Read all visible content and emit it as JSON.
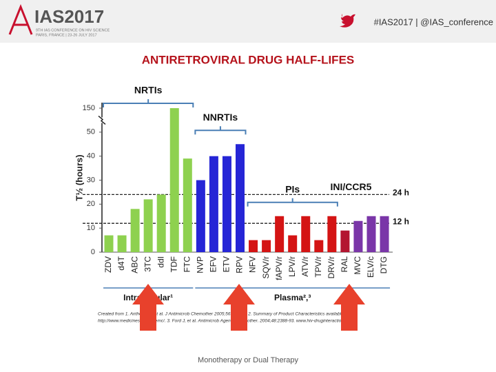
{
  "header": {
    "logo": "IAS2017",
    "logo_sub": "9TH IAS CONFERENCE ON HIV SCIENCE",
    "logo_place": "PARIS, FRANCE | 23-26 JULY 2017",
    "hashtag": "#IAS2017 | @IAS_conference"
  },
  "caption": "Monotherapy or Dual Therapy",
  "chart_data": {
    "type": "bar",
    "title": "ANTIRETROVIRAL DRUG HALF-LIFES",
    "y_label": "T½ (hours)",
    "categories": [
      "ZDV",
      "d4T",
      "ABC",
      "3TC",
      "ddI",
      "TDF",
      "FTC",
      "NVP",
      "EFV",
      "ETV",
      "RPV",
      "NFV",
      "SQV/r",
      "fAPV/r",
      "LPV/r",
      "ATV/r",
      "TPV/r",
      "DRV/r",
      "RAL",
      "MVC",
      "ELV/c",
      "DTG"
    ],
    "values": [
      7,
      7,
      18,
      22,
      24,
      150,
      39,
      30,
      40,
      40,
      45,
      5,
      5,
      15,
      7,
      15,
      5,
      15,
      9,
      13,
      15,
      15
    ],
    "colors": [
      "#8ed14f",
      "#8ed14f",
      "#8ed14f",
      "#8ed14f",
      "#8ed14f",
      "#8ed14f",
      "#8ed14f",
      "#2525d6",
      "#2525d6",
      "#2525d6",
      "#2525d6",
      "#d41414",
      "#d41414",
      "#d41414",
      "#d41414",
      "#d41414",
      "#d41414",
      "#d41414",
      "#b31530",
      "#7a36a8",
      "#7a36a8",
      "#7a36a8"
    ],
    "ylim": [
      0,
      150
    ],
    "yticks": [
      0,
      10,
      20,
      30,
      40,
      50,
      150
    ],
    "groups": [
      {
        "label": "NRTIs",
        "from": "ZDV",
        "to": "FTC"
      },
      {
        "label": "NNRTIs",
        "from": "NVP",
        "to": "RPV"
      },
      {
        "label": "PIs",
        "from": "NFV",
        "to": "DRV/r"
      },
      {
        "label": "INI/CCR5",
        "from": "RAL",
        "to": "DTG"
      }
    ],
    "bottom_groups": [
      {
        "label": "Intracellular¹",
        "from": "ZDV",
        "to": "FTC"
      },
      {
        "label": "Plasma²,³",
        "from": "NVP",
        "to": "DTG"
      }
    ],
    "reference_lines": [
      {
        "value": 24,
        "label": "24 h"
      },
      {
        "value": 12,
        "label": "12 h"
      }
    ],
    "footnote": [
      "Created from 1. Anthony Pl, et al. J Antimicrob Chemother 2005;56:240-50. 2. Summary of Product Characteristics available at",
      "http://www.medicines.org.uk/emc/. 3. Ford J, et al. Antimicrob Agents Chemother. 2004;48:2388-93. www.hiv-druginteractions.org"
    ]
  }
}
